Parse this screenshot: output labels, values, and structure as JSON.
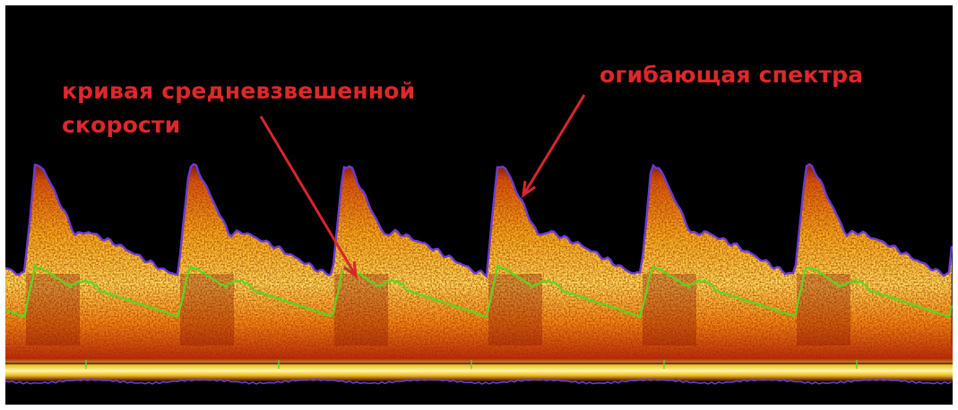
{
  "annotations": {
    "mean_velocity_line1": "кривая средневзвешенной",
    "mean_velocity_line2": "скорости",
    "envelope": "огибающая спектра"
  },
  "colors": {
    "background": "#000000",
    "annotation_text": "#e0272b",
    "arrow": "#d8262c",
    "envelope_curve": "#6a3cd6",
    "mean_velocity_curve": "#5fd41e",
    "spectrum_core": "#fff37a",
    "spectrum_mid": "#f7a21a",
    "spectrum_edge": "#a01808"
  },
  "icons": [
    "arrow-to-mean-curve",
    "arrow-to-envelope"
  ]
}
